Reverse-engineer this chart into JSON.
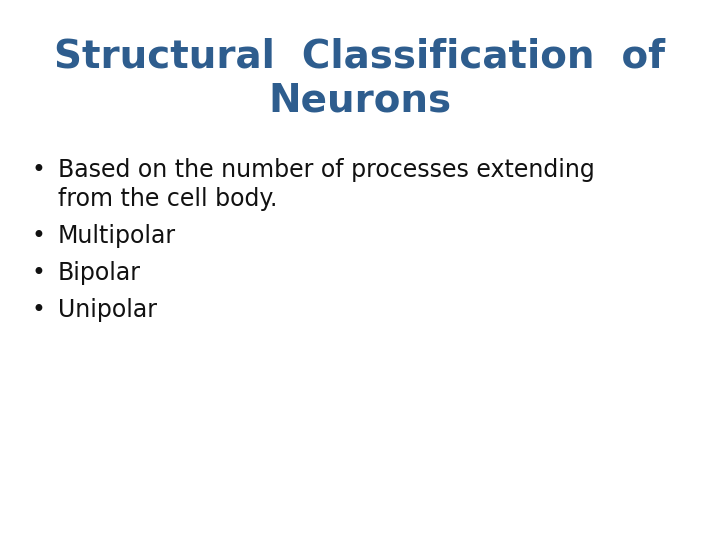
{
  "title_line1": "Structural  Classification  of",
  "title_line2": "Neurons",
  "title_color": "#2E5D8E",
  "title_fontsize": 28,
  "bullet_items_line1": [
    "Based on the number of processes extending",
    "from the cell body.",
    "Multipolar",
    "Bipolar",
    "Unipolar"
  ],
  "bullet_color": "#111111",
  "bullet_fontsize": 17,
  "background_color": "#ffffff",
  "bullet_char": "•",
  "fig_width": 7.2,
  "fig_height": 5.4,
  "dpi": 100
}
